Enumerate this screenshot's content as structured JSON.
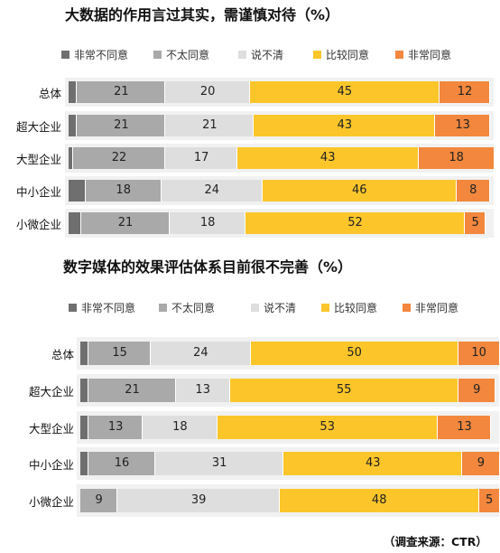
{
  "colors": {
    "非常不同意": "#6f6f6f",
    "不太同意": "#a9a9a9",
    "说不清": "#dedede",
    "比较同意": "#fcc62a",
    "非常同意": "#f2873d"
  },
  "chart_data": [
    {
      "type": "bar",
      "orientation": "horizontal",
      "stacked": true,
      "title": "大数据的作用言过其实，需谨慎对待（%）",
      "categories": [
        "总体",
        "超大企业",
        "大型企业",
        "中小企业",
        "小微企业"
      ],
      "series": [
        {
          "name": "非常不同意",
          "values": [
            2,
            2,
            1,
            4,
            3
          ],
          "labels": [
            "",
            "",
            "",
            "",
            ""
          ]
        },
        {
          "name": "不太同意",
          "values": [
            21,
            21,
            22,
            18,
            21
          ],
          "labels": [
            "21",
            "21",
            "22",
            "18",
            "21"
          ]
        },
        {
          "name": "说不清",
          "values": [
            20,
            21,
            17,
            24,
            18
          ],
          "labels": [
            "20",
            "21",
            "17",
            "24",
            "18"
          ]
        },
        {
          "name": "比较同意",
          "values": [
            45,
            43,
            43,
            46,
            52
          ],
          "labels": [
            "45",
            "43",
            "43",
            "46",
            "52"
          ]
        },
        {
          "name": "非常同意",
          "values": [
            12,
            13,
            18,
            8,
            5
          ],
          "labels": [
            "12",
            "13",
            "18",
            "8",
            "5"
          ]
        }
      ],
      "xlim": [
        0,
        100
      ],
      "legend": "top"
    },
    {
      "type": "bar",
      "orientation": "horizontal",
      "stacked": true,
      "title": "数字媒体的效果评估体系目前很不完善（%）",
      "categories": [
        "总体",
        "超大企业",
        "大型企业",
        "中小企业",
        "小微企业"
      ],
      "series": [
        {
          "name": "非常不同意",
          "values": [
            2,
            2,
            2,
            2,
            0
          ],
          "labels": [
            "",
            "",
            "",
            "",
            ""
          ]
        },
        {
          "name": "不太同意",
          "values": [
            15,
            21,
            13,
            16,
            9
          ],
          "labels": [
            "15",
            "21",
            "13",
            "16",
            "9"
          ]
        },
        {
          "name": "说不清",
          "values": [
            24,
            13,
            18,
            31,
            39
          ],
          "labels": [
            "24",
            "13",
            "18",
            "31",
            "39"
          ]
        },
        {
          "name": "比较同意",
          "values": [
            50,
            55,
            53,
            43,
            48
          ],
          "labels": [
            "50",
            "55",
            "53",
            "43",
            "48"
          ]
        },
        {
          "name": "非常同意",
          "values": [
            10,
            9,
            13,
            9,
            5
          ],
          "labels": [
            "10",
            "9",
            "13",
            "9",
            "5"
          ]
        }
      ],
      "xlim": [
        0,
        100
      ],
      "legend": "top"
    }
  ],
  "source": "（调查来源：CTR）"
}
